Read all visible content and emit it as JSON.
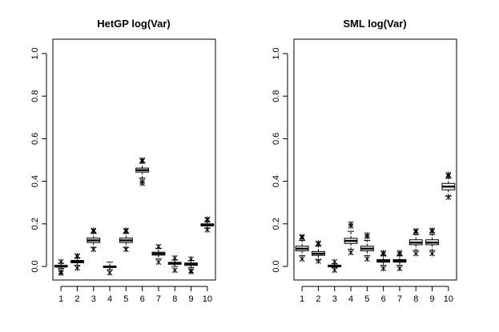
{
  "chart_data": [
    {
      "type": "boxplot",
      "title": "HetGP log(Var)",
      "categories": [
        "1",
        "2",
        "3",
        "4",
        "5",
        "6",
        "7",
        "8",
        "9",
        "10"
      ],
      "ylim": [
        0,
        1
      ],
      "yticks": [
        "0.0",
        "0.2",
        "0.4",
        "0.6",
        "0.8",
        "1.0"
      ],
      "boxes": [
        {
          "label": "1",
          "min": -0.01,
          "q1": -0.003,
          "median": 0.0,
          "q3": 0.005,
          "max": 0.015,
          "outliers": [
            0.022,
            -0.025,
            -0.032
          ]
        },
        {
          "label": "2",
          "min": 0.005,
          "q1": 0.017,
          "median": 0.022,
          "q3": 0.028,
          "max": 0.04,
          "outliers": [
            0.05,
            0.047,
            -0.008
          ]
        },
        {
          "label": "3",
          "min": 0.09,
          "q1": 0.112,
          "median": 0.122,
          "q3": 0.133,
          "max": 0.155,
          "outliers": [
            0.17,
            0.165,
            0.08
          ]
        },
        {
          "label": "4",
          "min": -0.015,
          "q1": -0.005,
          "median": -0.002,
          "q3": 0.002,
          "max": 0.02,
          "outliers": [
            -0.03
          ]
        },
        {
          "label": "5",
          "min": 0.09,
          "q1": 0.112,
          "median": 0.122,
          "q3": 0.133,
          "max": 0.155,
          "outliers": [
            0.17,
            0.165,
            0.08
          ]
        },
        {
          "label": "6",
          "min": 0.415,
          "q1": 0.443,
          "median": 0.452,
          "q3": 0.462,
          "max": 0.485,
          "outliers": [
            0.5,
            0.495,
            0.4,
            0.39
          ]
        },
        {
          "label": "7",
          "min": 0.035,
          "q1": 0.053,
          "median": 0.06,
          "q3": 0.067,
          "max": 0.085,
          "outliers": [
            0.093,
            0.02
          ]
        },
        {
          "label": "8",
          "min": 0.0,
          "q1": 0.01,
          "median": 0.014,
          "q3": 0.019,
          "max": 0.03,
          "outliers": [
            0.04,
            -0.018
          ]
        },
        {
          "label": "9",
          "min": -0.005,
          "q1": 0.005,
          "median": 0.01,
          "q3": 0.016,
          "max": 0.028,
          "outliers": [
            0.035,
            -0.02,
            -0.025
          ]
        },
        {
          "label": "10",
          "min": 0.18,
          "q1": 0.19,
          "median": 0.195,
          "q3": 0.2,
          "max": 0.21,
          "outliers": [
            0.222,
            0.218,
            0.172
          ]
        }
      ]
    },
    {
      "type": "boxplot",
      "title": "SML log(Var)",
      "categories": [
        "1",
        "2",
        "3",
        "4",
        "5",
        "6",
        "7",
        "8",
        "9",
        "10"
      ],
      "ylim": [
        0,
        1
      ],
      "yticks": [
        "0.0",
        "0.2",
        "0.4",
        "0.6",
        "0.8",
        "1.0"
      ],
      "boxes": [
        {
          "label": "1",
          "min": 0.05,
          "q1": 0.073,
          "median": 0.083,
          "q3": 0.095,
          "max": 0.122,
          "outliers": [
            0.14,
            0.135,
            0.035
          ]
        },
        {
          "label": "2",
          "min": 0.03,
          "q1": 0.052,
          "median": 0.06,
          "q3": 0.07,
          "max": 0.095,
          "outliers": [
            0.11,
            0.105,
            0.025
          ]
        },
        {
          "label": "3",
          "min": -0.005,
          "q1": -0.002,
          "median": 0.002,
          "q3": 0.006,
          "max": 0.012,
          "outliers": [
            0.022,
            -0.018
          ]
        },
        {
          "label": "4",
          "min": 0.08,
          "q1": 0.108,
          "median": 0.12,
          "q3": 0.132,
          "max": 0.165,
          "outliers": [
            0.2,
            0.19,
            0.065
          ]
        },
        {
          "label": "5",
          "min": 0.05,
          "q1": 0.073,
          "median": 0.083,
          "q3": 0.095,
          "max": 0.122,
          "outliers": [
            0.148,
            0.14,
            0.035
          ]
        },
        {
          "label": "6",
          "min": 0.005,
          "q1": 0.02,
          "median": 0.025,
          "q3": 0.032,
          "max": 0.05,
          "outliers": [
            0.065,
            0.058,
            -0.01
          ]
        },
        {
          "label": "7",
          "min": 0.005,
          "q1": 0.02,
          "median": 0.025,
          "q3": 0.032,
          "max": 0.05,
          "outliers": [
            0.065,
            0.058,
            -0.01
          ]
        },
        {
          "label": "8",
          "min": 0.075,
          "q1": 0.102,
          "median": 0.112,
          "q3": 0.125,
          "max": 0.15,
          "outliers": [
            0.168,
            0.162,
            0.06
          ]
        },
        {
          "label": "9",
          "min": 0.075,
          "q1": 0.102,
          "median": 0.112,
          "q3": 0.125,
          "max": 0.15,
          "outliers": [
            0.17,
            0.165,
            0.06
          ]
        },
        {
          "label": "10",
          "min": 0.33,
          "q1": 0.36,
          "median": 0.375,
          "q3": 0.39,
          "max": 0.415,
          "outliers": [
            0.432,
            0.425,
            0.325
          ]
        }
      ]
    }
  ]
}
